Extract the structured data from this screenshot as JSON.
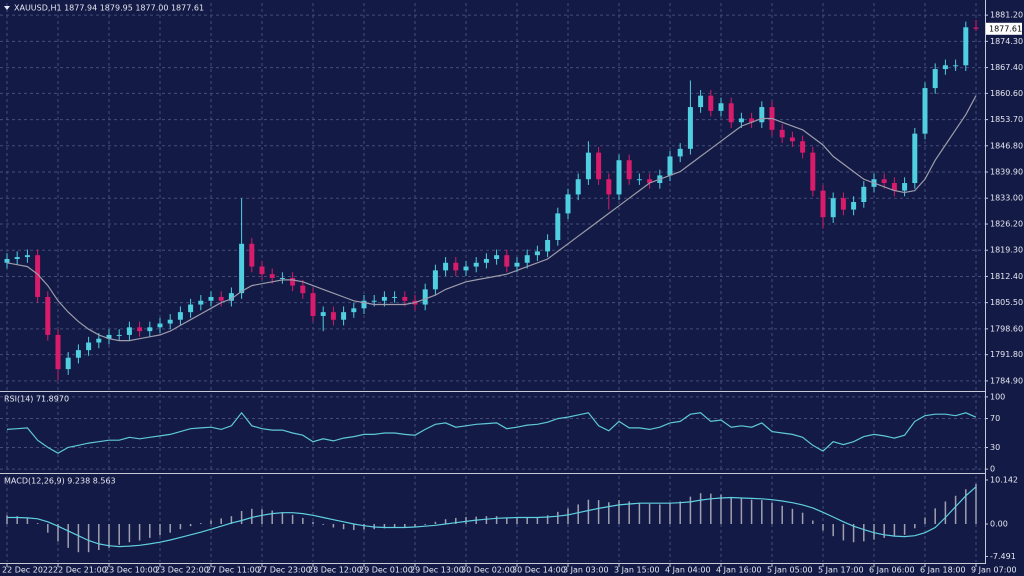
{
  "chart_data": [
    {
      "type": "candlestick",
      "title": "XAUUSD,H1  1877.94 1879.95 1877.00 1877.61",
      "categories": [
        "22 Dec 2022",
        null,
        null,
        null,
        null,
        "22 Dec 21:00",
        null,
        null,
        null,
        null,
        "23 Dec 10:00",
        null,
        null,
        null,
        null,
        "23 Dec 22:00",
        null,
        null,
        null,
        null,
        "27 Dec 11:00",
        null,
        null,
        null,
        null,
        "27 Dec 23:00",
        null,
        null,
        null,
        null,
        "28 Dec 12:00",
        null,
        null,
        null,
        null,
        "29 Dec 01:00",
        null,
        null,
        null,
        null,
        "29 Dec 13:00",
        null,
        null,
        null,
        null,
        "30 Dec 02:00",
        null,
        null,
        null,
        null,
        "30 Dec 14:00",
        null,
        null,
        null,
        null,
        "3 Jan 03:00",
        null,
        null,
        null,
        null,
        "3 Jan 15:00",
        null,
        null,
        null,
        null,
        "4 Jan 04:00",
        null,
        null,
        null,
        null,
        "4 Jan 16:00",
        null,
        null,
        null,
        null,
        "5 Jan 05:00",
        null,
        null,
        null,
        null,
        "5 Jan 17:00",
        null,
        null,
        null,
        null,
        "6 Jan 06:00",
        null,
        null,
        null,
        null,
        "6 Jan 18:00",
        null,
        null,
        null,
        null,
        "9 Jan 07:00"
      ],
      "open": [
        1816,
        1817,
        1817.5,
        1818,
        1807,
        1797,
        1788,
        1791,
        1793,
        1795,
        1796,
        1797,
        1797,
        1799,
        1798,
        1799,
        1800,
        1801,
        1803,
        1805,
        1806,
        1807,
        1806,
        1808,
        1821,
        1815,
        1813,
        1812,
        1812,
        1810,
        1808,
        1802,
        1803,
        1801,
        1803,
        1804,
        1806,
        1806,
        1807,
        1807,
        1806,
        1805,
        1809,
        1814,
        1816,
        1814,
        1815,
        1816,
        1817,
        1818,
        1815,
        1816,
        1818,
        1819,
        1822,
        1829,
        1834,
        1838,
        1845,
        1838,
        1834,
        1843,
        1838,
        1838,
        1837,
        1839,
        1844,
        1846,
        1857,
        1860,
        1856,
        1858,
        1853,
        1854,
        1853,
        1857,
        1851,
        1849,
        1848,
        1845,
        1835,
        1828,
        1833,
        1830,
        1832,
        1836,
        1838,
        1837,
        1835,
        1837,
        1850,
        1862,
        1867,
        1868,
        1868,
        1877.94
      ],
      "high": [
        1818.5,
        1819,
        1819.5,
        1819.5,
        1808.5,
        1798.5,
        1792.5,
        1794.5,
        1796.5,
        1797.5,
        1798.5,
        1798.5,
        1800.5,
        1800.5,
        1800.5,
        1801.5,
        1802.5,
        1804.5,
        1806.5,
        1807.5,
        1808.5,
        1808.5,
        1809.5,
        1833,
        1822.5,
        1816.5,
        1814.5,
        1813.5,
        1813.5,
        1811.5,
        1809.5,
        1804.5,
        1804.5,
        1804.5,
        1805.5,
        1807.5,
        1807.5,
        1808.5,
        1808.5,
        1808.5,
        1807.5,
        1810.5,
        1815.5,
        1817.5,
        1817.5,
        1816.5,
        1817.5,
        1818.5,
        1819.5,
        1819.5,
        1817.5,
        1819.5,
        1820.5,
        1823.5,
        1830.5,
        1835.5,
        1839.5,
        1848,
        1846.5,
        1839.5,
        1844.5,
        1844.5,
        1839.5,
        1839.5,
        1840.5,
        1845.5,
        1847.5,
        1864,
        1861.5,
        1861.5,
        1859.5,
        1859.5,
        1855.5,
        1855.5,
        1858.5,
        1858.5,
        1852.5,
        1850.5,
        1849.5,
        1846.5,
        1836.5,
        1834.5,
        1834.5,
        1833.5,
        1837.5,
        1839.5,
        1839.5,
        1838.5,
        1838.5,
        1851.5,
        1863.5,
        1868.5,
        1869.5,
        1869.5,
        1879.5,
        1879.95
      ],
      "low": [
        1814.5,
        1815.5,
        1816,
        1805.5,
        1795.5,
        1785,
        1786.5,
        1789.5,
        1791.5,
        1793.5,
        1794.5,
        1795.5,
        1795.5,
        1796.5,
        1796.5,
        1797.5,
        1798.5,
        1799.5,
        1801.5,
        1803.5,
        1804.5,
        1804.5,
        1804.5,
        1806.5,
        1813.5,
        1811.5,
        1810.5,
        1810.5,
        1808.5,
        1806.5,
        1800.5,
        1798,
        1799.5,
        1799.5,
        1801.5,
        1802.5,
        1804.5,
        1804.5,
        1805.5,
        1804.5,
        1803.5,
        1803.5,
        1807.5,
        1812.5,
        1812.5,
        1812.5,
        1813.5,
        1814.5,
        1815.5,
        1813.5,
        1813.5,
        1814.5,
        1816.5,
        1817.5,
        1820.5,
        1827.5,
        1832.5,
        1836.5,
        1836.5,
        1830,
        1832.5,
        1836.5,
        1836.5,
        1835.5,
        1835.5,
        1837.5,
        1842.5,
        1844.5,
        1855.5,
        1854.5,
        1854.5,
        1851.5,
        1851.5,
        1851.5,
        1851.5,
        1849.5,
        1847.5,
        1846.5,
        1843.5,
        1833.5,
        1825,
        1826.5,
        1828.5,
        1828.5,
        1830.5,
        1834.5,
        1835.5,
        1833.5,
        1833.5,
        1835.5,
        1848.5,
        1860.5,
        1865.5,
        1866.5,
        1866.5,
        1877
      ],
      "close": [
        1817,
        1817.5,
        1818,
        1807,
        1797,
        1788,
        1791,
        1793,
        1795,
        1796,
        1797,
        1797,
        1799,
        1798,
        1799,
        1800,
        1801,
        1803,
        1805,
        1806,
        1807,
        1806,
        1808,
        1821,
        1815,
        1813,
        1812,
        1812,
        1810,
        1808,
        1802,
        1803,
        1801,
        1803,
        1804,
        1806,
        1806,
        1807,
        1807,
        1806,
        1805,
        1809,
        1814,
        1816,
        1814,
        1815,
        1816,
        1817,
        1818,
        1815,
        1816,
        1818,
        1819,
        1822,
        1829,
        1834,
        1838,
        1845,
        1838,
        1834,
        1843,
        1838,
        1838,
        1837,
        1839,
        1844,
        1846,
        1857,
        1860,
        1856,
        1858,
        1853,
        1854,
        1853,
        1857,
        1851,
        1849,
        1848,
        1845,
        1835,
        1828,
        1833,
        1830,
        1832,
        1836,
        1838,
        1837,
        1835,
        1837,
        1850,
        1862,
        1867,
        1868,
        1868,
        1878,
        1877.61
      ],
      "up_color": "#4fcfe0",
      "down_color": "#d81b6a",
      "series": [
        {
          "color": "#9c9cab",
          "values": [
            1816,
            1815.5,
            1815,
            1813,
            1810,
            1806,
            1803,
            1800.5,
            1798.5,
            1797,
            1796,
            1795.5,
            1795.5,
            1796,
            1796.5,
            1797,
            1798,
            1799.5,
            1801,
            1802.5,
            1804,
            1805.5,
            1806.5,
            1808.5,
            1810,
            1810.5,
            1811,
            1811.5,
            1811.5,
            1811,
            1810,
            1809,
            1808,
            1807,
            1806,
            1805.5,
            1805,
            1805,
            1805,
            1805,
            1805.5,
            1806.5,
            1807.5,
            1809,
            1810,
            1811,
            1811.5,
            1812,
            1812.5,
            1813,
            1814,
            1815,
            1816,
            1817,
            1819,
            1821,
            1823,
            1825,
            1827,
            1829,
            1831,
            1833,
            1835,
            1837,
            1838,
            1839,
            1840,
            1842,
            1844,
            1846,
            1848,
            1850,
            1852,
            1853,
            1854,
            1854,
            1853,
            1852,
            1851,
            1849,
            1847,
            1844,
            1842,
            1840,
            1838,
            1837,
            1836,
            1835,
            1834.5,
            1835,
            1838,
            1843,
            1847,
            1851,
            1855,
            1860
          ]
        }
      ],
      "ylim": [
        1782.5,
        1884.4
      ],
      "yticks": [
        {
          "value": 1881.2,
          "label": "1881.20"
        },
        {
          "value": 1874.3,
          "label": "1874.30"
        },
        {
          "value": 1867.4,
          "label": "1867.40"
        },
        {
          "value": 1860.6,
          "label": "1860.60"
        },
        {
          "value": 1853.7,
          "label": "1853.70"
        },
        {
          "value": 1846.8,
          "label": "1846.80"
        },
        {
          "value": 1839.9,
          "label": "1839.90"
        },
        {
          "value": 1833,
          "label": "1833.00"
        },
        {
          "value": 1826.2,
          "label": "1826.20"
        },
        {
          "value": 1819.3,
          "label": "1819.30"
        },
        {
          "value": 1812.4,
          "label": "1812.40"
        },
        {
          "value": 1805.5,
          "label": "1805.50"
        },
        {
          "value": 1798.6,
          "label": "1798.60"
        },
        {
          "value": 1791.8,
          "label": "1791.80"
        },
        {
          "value": 1784.9,
          "label": "1784.90"
        }
      ],
      "grid": true
    },
    {
      "type": "line",
      "title": "RSI(14) 71.8970",
      "series": [
        {
          "color": "#5fc8d8",
          "values": [
            55,
            56,
            57,
            40,
            30,
            22,
            30,
            33,
            36,
            38,
            40,
            40,
            44,
            42,
            44,
            46,
            48,
            52,
            56,
            57,
            58,
            55,
            60,
            78,
            60,
            56,
            54,
            54,
            50,
            47,
            38,
            42,
            39,
            43,
            45,
            48,
            48,
            50,
            50,
            48,
            47,
            55,
            62,
            64,
            58,
            60,
            62,
            63,
            64,
            56,
            58,
            61,
            62,
            65,
            70,
            72,
            75,
            78,
            60,
            53,
            66,
            57,
            57,
            55,
            58,
            64,
            66,
            76,
            78,
            66,
            68,
            58,
            60,
            58,
            64,
            52,
            50,
            48,
            44,
            33,
            25,
            38,
            34,
            38,
            45,
            48,
            46,
            43,
            47,
            66,
            74,
            76,
            76,
            74,
            78,
            71.897
          ]
        }
      ],
      "ylim": [
        -4,
        104
      ],
      "yticks": [
        100,
        70,
        30,
        0
      ],
      "grid": true
    },
    {
      "type": "macd",
      "title": "MACD(12,26,9) 9.238 8.563",
      "series": [
        {
          "kind": "bar",
          "color": "#a0a0b0",
          "values": [
            2,
            1.8,
            1.5,
            0.2,
            -2,
            -4,
            -5.5,
            -6.5,
            -6.5,
            -6,
            -5.5,
            -4.8,
            -4.2,
            -3.8,
            -3.2,
            -2.6,
            -2,
            -1.2,
            -0.5,
            0.2,
            0.8,
            1.3,
            1.8,
            3,
            3.5,
            3.4,
            3.1,
            2.7,
            2.1,
            1.4,
            0.5,
            -0.2,
            -0.8,
            -1.2,
            -1.4,
            -1.3,
            -1.2,
            -1,
            -0.9,
            -0.8,
            -0.7,
            -0.2,
            0.5,
            1.1,
            1.4,
            1.6,
            1.7,
            1.8,
            1.8,
            1.5,
            1.4,
            1.5,
            1.6,
            2,
            2.8,
            3.6,
            4.5,
            5.6,
            5.5,
            5,
            5.5,
            5.2,
            4.9,
            4.6,
            4.5,
            4.8,
            5.2,
            6.3,
            7.1,
            7,
            6.8,
            6.2,
            5.9,
            5.6,
            5.5,
            4.9,
            4.2,
            3.5,
            2.6,
            0.8,
            -1.5,
            -2.8,
            -3.8,
            -4.2,
            -4,
            -3.6,
            -3.2,
            -2.9,
            -2.5,
            -1,
            1.5,
            3.6,
            5.2,
            6.5,
            8,
            9.238
          ]
        },
        {
          "kind": "line",
          "color": "#5fd0e0",
          "values": [
            1.5,
            1.5,
            1.4,
            1.2,
            0.5,
            -0.5,
            -1.6,
            -2.7,
            -3.8,
            -4.6,
            -5,
            -5.2,
            -5.1,
            -4.9,
            -4.6,
            -4.2,
            -3.7,
            -3.1,
            -2.5,
            -1.9,
            -1.2,
            -0.5,
            0.2,
            0.8,
            1.5,
            2,
            2.4,
            2.6,
            2.6,
            2.4,
            2,
            1.5,
            1,
            0.5,
            0,
            -0.4,
            -0.7,
            -0.8,
            -0.8,
            -0.8,
            -0.7,
            -0.5,
            -0.3,
            0,
            0.3,
            0.6,
            0.9,
            1.1,
            1.3,
            1.4,
            1.5,
            1.5,
            1.5,
            1.6,
            1.8,
            2.1,
            2.6,
            3.1,
            3.6,
            4,
            4.4,
            4.6,
            4.8,
            4.8,
            4.8,
            4.8,
            4.9,
            5.1,
            5.5,
            5.8,
            6,
            6.1,
            6,
            5.9,
            5.8,
            5.6,
            5.3,
            4.9,
            4.4,
            3.7,
            2.7,
            1.6,
            0.5,
            -0.5,
            -1.3,
            -2,
            -2.5,
            -2.8,
            -2.9,
            -2.7,
            -2,
            -0.8,
            1.5,
            4,
            6.5,
            8.563
          ]
        }
      ],
      "ylim": [
        -8.76,
        11.06
      ],
      "yticks": [
        10.142,
        {
          "value": 0,
          "label": "0.00"
        },
        -7.491
      ],
      "grid": false
    }
  ]
}
